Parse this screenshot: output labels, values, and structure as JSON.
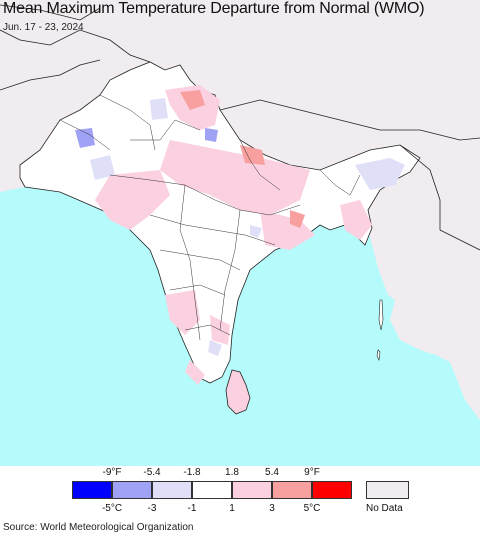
{
  "title": "Mean Maximum Temperature Departure from Normal (WMO)",
  "date_range": "Jun. 17 - 23, 2024",
  "source": "Source: World Meteorological Organization",
  "legend": {
    "fahrenheit_ticks": [
      "-9°F",
      "-5.4",
      "-1.8",
      "1.8",
      "5.4",
      "9°F"
    ],
    "celsius_ticks": [
      "-5°C",
      "-3",
      "-1",
      "1",
      "3",
      "5°C"
    ],
    "bins": [
      {
        "color": "#0000ff"
      },
      {
        "color": "#a0a3f5"
      },
      {
        "color": "#dfe0f8"
      },
      {
        "color": "#ffffff"
      },
      {
        "color": "#fbd0e0"
      },
      {
        "color": "#f8a0a0"
      },
      {
        "color": "#ff0000"
      }
    ],
    "no_data_label": "No Data",
    "no_data_color": "#f0ecef"
  },
  "colors": {
    "ocean": "#b5fbfb",
    "land": "#ffffff",
    "outside_region": "#f0ecef",
    "border": "#222222"
  }
}
